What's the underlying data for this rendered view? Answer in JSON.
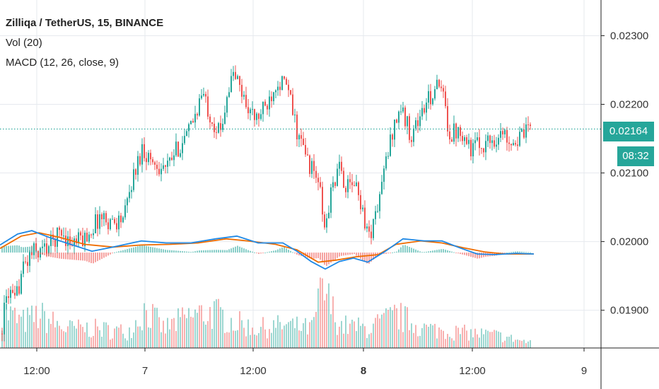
{
  "chart_data": {
    "type": "candlestick",
    "title": "Zilliqa / TetherUS, 15, BINANCE",
    "indicators": [
      "Vol (20)",
      "MACD (12, 26, close, 9)"
    ],
    "x_tick_labels": [
      "12:00",
      "7",
      "12:00",
      "8",
      "12:00",
      "9"
    ],
    "y_tick_labels": [
      "0.02300",
      "0.02200",
      "0.02100",
      "0.02000",
      "0.01900"
    ],
    "ylim": [
      0.01845,
      0.02352
    ],
    "last_price": "0.02164",
    "countdown": "08:32",
    "colors": {
      "up": "#26a69a",
      "down": "#ef5350",
      "macd_line": "#1e88e5",
      "signal_line": "#ef6c00",
      "grid": "#e6e9ee",
      "axis": "#222222"
    },
    "price_path": [
      [
        0,
        0.01866
      ],
      [
        10,
        0.0193
      ],
      [
        20,
        0.01908
      ],
      [
        30,
        0.01958
      ],
      [
        45,
        0.01985
      ],
      [
        55,
        0.01985
      ],
      [
        70,
        0.01996
      ],
      [
        85,
        0.02016
      ],
      [
        100,
        0.01996
      ],
      [
        120,
        0.02006
      ],
      [
        140,
        0.02036
      ],
      [
        160,
        0.02028
      ],
      [
        175,
        0.02036
      ],
      [
        185,
        0.02086
      ],
      [
        200,
        0.02136
      ],
      [
        215,
        0.02116
      ],
      [
        235,
        0.02106
      ],
      [
        250,
        0.02136
      ],
      [
        265,
        0.02156
      ],
      [
        285,
        0.02216
      ],
      [
        300,
        0.02176
      ],
      [
        310,
        0.02156
      ],
      [
        320,
        0.02216
      ],
      [
        330,
        0.02246
      ],
      [
        345,
        0.02206
      ],
      [
        360,
        0.02176
      ],
      [
        375,
        0.02196
      ],
      [
        390,
        0.02236
      ],
      [
        405,
        0.02226
      ],
      [
        420,
        0.02156
      ],
      [
        435,
        0.02116
      ],
      [
        450,
        0.02086
      ],
      [
        458,
        0.02016
      ],
      [
        470,
        0.02086
      ],
      [
        480,
        0.02106
      ],
      [
        490,
        0.02076
      ],
      [
        500,
        0.02086
      ],
      [
        510,
        0.02056
      ],
      [
        520,
        0.02006
      ],
      [
        530,
        0.02036
      ],
      [
        545,
        0.02116
      ],
      [
        555,
        0.02166
      ],
      [
        565,
        0.02196
      ],
      [
        580,
        0.02156
      ],
      [
        595,
        0.02186
      ],
      [
        615,
        0.02226
      ],
      [
        625,
        0.02216
      ],
      [
        635,
        0.02156
      ],
      [
        650,
        0.02166
      ],
      [
        665,
        0.02136
      ],
      [
        690,
        0.02146
      ],
      [
        710,
        0.02156
      ],
      [
        730,
        0.02146
      ],
      [
        750,
        0.02164
      ]
    ],
    "volume_path": [
      [
        0,
        0.6
      ],
      [
        30,
        0.4
      ],
      [
        55,
        0.5
      ],
      [
        90,
        0.3
      ],
      [
        130,
        0.3
      ],
      [
        180,
        0.25
      ],
      [
        205,
        0.6
      ],
      [
        230,
        0.3
      ],
      [
        270,
        0.5
      ],
      [
        300,
        0.55
      ],
      [
        330,
        0.4
      ],
      [
        360,
        0.3
      ],
      [
        400,
        0.35
      ],
      [
        440,
        0.3
      ],
      [
        455,
        0.9
      ],
      [
        480,
        0.35
      ],
      [
        520,
        0.3
      ],
      [
        560,
        0.5
      ],
      [
        600,
        0.3
      ],
      [
        640,
        0.25
      ],
      [
        700,
        0.2
      ],
      [
        750,
        0.08
      ]
    ],
    "macd_path": [
      [
        0,
        0.01995
      ],
      [
        25,
        0.02011
      ],
      [
        45,
        0.02016
      ],
      [
        70,
        0.02006
      ],
      [
        100,
        0.01996
      ],
      [
        130,
        0.01986
      ],
      [
        160,
        0.01992
      ],
      [
        200,
        0.02001
      ],
      [
        235,
        0.01998
      ],
      [
        270,
        0.01998
      ],
      [
        305,
        0.02004
      ],
      [
        335,
        0.02008
      ],
      [
        365,
        0.01998
      ],
      [
        400,
        0.01998
      ],
      [
        420,
        0.01986
      ],
      [
        440,
        0.01971
      ],
      [
        460,
        0.0196
      ],
      [
        480,
        0.01971
      ],
      [
        500,
        0.01976
      ],
      [
        520,
        0.0197
      ],
      [
        545,
        0.01986
      ],
      [
        570,
        0.02004
      ],
      [
        600,
        0.02001
      ],
      [
        625,
        0.02001
      ],
      [
        650,
        0.01991
      ],
      [
        675,
        0.01982
      ],
      [
        700,
        0.01981
      ],
      [
        730,
        0.01983
      ],
      [
        755,
        0.01982
      ]
    ],
    "signal_path": [
      [
        0,
        0.0199
      ],
      [
        30,
        0.02008
      ],
      [
        55,
        0.02013
      ],
      [
        85,
        0.02006
      ],
      [
        120,
        0.01996
      ],
      [
        160,
        0.01992
      ],
      [
        200,
        0.01995
      ],
      [
        240,
        0.01996
      ],
      [
        280,
        0.01998
      ],
      [
        320,
        0.02004
      ],
      [
        350,
        0.02001
      ],
      [
        390,
        0.01996
      ],
      [
        420,
        0.01988
      ],
      [
        450,
        0.0197
      ],
      [
        475,
        0.01973
      ],
      [
        505,
        0.01978
      ],
      [
        535,
        0.01981
      ],
      [
        560,
        0.01996
      ],
      [
        595,
        0.02001
      ],
      [
        625,
        0.01998
      ],
      [
        655,
        0.01991
      ],
      [
        685,
        0.01985
      ],
      [
        715,
        0.01982
      ],
      [
        755,
        0.01982
      ]
    ],
    "histogram_base": 0.01984
  }
}
